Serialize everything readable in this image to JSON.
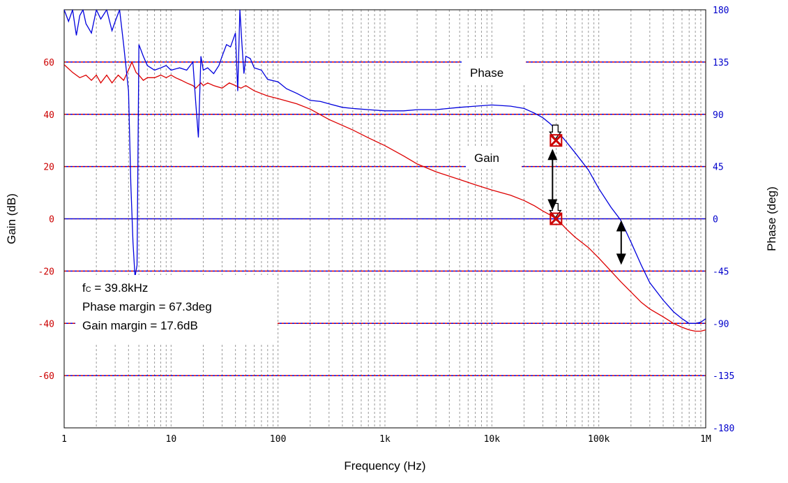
{
  "chart_data": {
    "type": "line",
    "xlabel": "Frequency (Hz)",
    "ylabel": "Gain (dB)",
    "y2label": "Phase (deg)",
    "x_scale": "log",
    "xlim": [
      1,
      1000000
    ],
    "ylim": [
      -80,
      80
    ],
    "y2lim": [
      -180,
      180
    ],
    "grid": true,
    "x_ticks": [
      {
        "value": 1,
        "label": "1"
      },
      {
        "value": 10,
        "label": "10"
      },
      {
        "value": 100,
        "label": "100"
      },
      {
        "value": 1000,
        "label": "1k"
      },
      {
        "value": 10000,
        "label": "10k"
      },
      {
        "value": 100000,
        "label": "100k"
      },
      {
        "value": 1000000,
        "label": "1M"
      }
    ],
    "y_ticks": [
      {
        "value": 60,
        "label": "60"
      },
      {
        "value": 40,
        "label": "40"
      },
      {
        "value": 20,
        "label": "20"
      },
      {
        "value": 0,
        "label": "0"
      },
      {
        "value": -20,
        "label": "-20"
      },
      {
        "value": -40,
        "label": "-40"
      },
      {
        "value": -60,
        "label": "-60"
      }
    ],
    "y2_ticks": [
      {
        "value": 180,
        "label": "180"
      },
      {
        "value": 135,
        "label": "135"
      },
      {
        "value": 90,
        "label": "90"
      },
      {
        "value": 45,
        "label": "45"
      },
      {
        "value": 0,
        "label": "0"
      },
      {
        "value": -45,
        "label": "-45"
      },
      {
        "value": -90,
        "label": "-90"
      },
      {
        "value": -135,
        "label": "-135"
      },
      {
        "value": -180,
        "label": "-180"
      }
    ],
    "series": [
      {
        "name": "Gain",
        "color": "#dd0000",
        "axis": "left",
        "x": [
          1,
          1.2,
          1.4,
          1.6,
          1.8,
          2,
          2.2,
          2.5,
          2.8,
          3.2,
          3.6,
          4,
          4.3,
          4.7,
          5,
          5.5,
          6,
          7,
          8,
          9,
          10,
          11,
          12.5,
          14,
          16,
          17,
          18,
          19,
          20,
          22,
          25,
          30,
          35,
          40,
          45,
          50,
          60,
          80,
          100,
          150,
          200,
          300,
          500,
          700,
          1000,
          1500,
          2000,
          3000,
          5000,
          7000,
          10000,
          15000,
          20000,
          25000,
          30000,
          35000,
          39800,
          45000,
          50000,
          60000,
          80000,
          100000,
          130000,
          160000,
          200000,
          250000,
          300000,
          400000,
          500000,
          600000,
          700000,
          800000,
          900000,
          1000000
        ],
        "values": [
          59,
          56,
          54,
          55,
          53,
          55,
          52,
          55,
          52,
          55,
          53,
          57,
          60,
          56,
          55,
          53,
          54,
          54,
          55,
          54,
          55,
          54,
          53,
          52,
          51,
          50,
          51,
          52,
          51,
          52,
          51,
          50,
          52,
          51,
          50,
          51,
          49,
          47,
          46,
          44,
          42,
          38,
          34,
          31,
          28,
          24,
          21,
          18,
          15,
          13,
          11,
          9,
          7,
          5,
          3,
          1.5,
          0,
          -2,
          -4,
          -7,
          -11,
          -15,
          -20,
          -24,
          -28,
          -32,
          -34.5,
          -37.5,
          -40,
          -41.5,
          -42.5,
          -43,
          -43,
          -42.5
        ]
      },
      {
        "name": "Phase",
        "color": "#0000dd",
        "axis": "right",
        "x": [
          1,
          1.1,
          1.2,
          1.3,
          1.4,
          1.5,
          1.6,
          1.8,
          2,
          2.2,
          2.5,
          2.8,
          3,
          3.3,
          3.6,
          4,
          4.2,
          4.4,
          4.6,
          4.8,
          5,
          5.5,
          6,
          7,
          8,
          9,
          10,
          12,
          14,
          16,
          17,
          18,
          19,
          20,
          22,
          25,
          28,
          30,
          33,
          36,
          40,
          42,
          44,
          46,
          48,
          50,
          55,
          60,
          70,
          80,
          100,
          120,
          150,
          200,
          250,
          300,
          400,
          500,
          700,
          1000,
          1500,
          2000,
          3000,
          5000,
          7000,
          10000,
          15000,
          20000,
          25000,
          30000,
          35000,
          39800,
          45000,
          50000,
          60000,
          80000,
          100000,
          130000,
          160000,
          200000,
          250000,
          300000,
          400000,
          500000,
          600000,
          700000,
          800000,
          900000,
          1000000
        ],
        "values": [
          180,
          170,
          180,
          158,
          175,
          180,
          168,
          160,
          180,
          172,
          180,
          162,
          170,
          180,
          150,
          110,
          30,
          -20,
          -50,
          -40,
          150,
          140,
          132,
          128,
          130,
          132,
          128,
          130,
          128,
          135,
          100,
          70,
          140,
          128,
          130,
          125,
          132,
          140,
          150,
          148,
          160,
          110,
          180,
          150,
          125,
          140,
          138,
          130,
          128,
          120,
          118,
          112,
          108,
          102,
          101,
          99,
          96,
          95,
          94,
          93,
          93,
          94,
          94,
          96,
          97,
          98,
          97,
          95,
          91,
          87,
          82,
          77,
          71,
          66,
          57,
          42,
          26,
          10,
          -1,
          -20,
          -40,
          -55,
          -70,
          -80,
          -86,
          -90,
          -90,
          -89,
          -86
        ]
      }
    ],
    "annotations": {
      "phase_label": "Phase",
      "gain_label": "Gain",
      "fc_prefix": "f",
      "fc_subscript": "C",
      "fc_value": " = 39.8kHz",
      "phase_margin": "Phase margin = 67.3deg",
      "gain_margin": "Gain margin = 17.6dB"
    },
    "colors": {
      "gain_axis": "#cc0000",
      "phase_axis": "#0000cc",
      "grid_gain": "#dd0000",
      "grid_phase": "#0000dd",
      "marker": "#cc0000"
    }
  }
}
